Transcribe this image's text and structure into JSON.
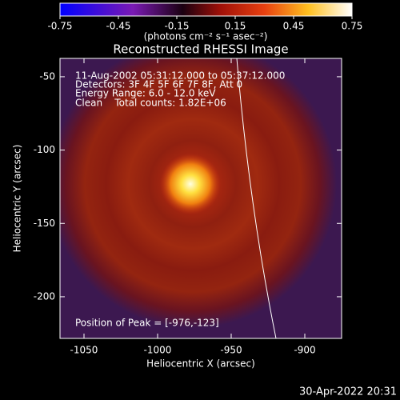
{
  "chart_data": {
    "type": "image",
    "title": "Reconstructed RHESSI Image",
    "xlabel": "Heliocentric X (arcsec)",
    "ylabel": "Heliocentric Y (arcsec)",
    "xlim": [
      -1066.3,
      -875
    ],
    "ylim": [
      -228.4,
      -37.5
    ],
    "xticks": [
      -1050,
      -1000,
      -950,
      -900
    ],
    "yticks": [
      -50,
      -100,
      -150,
      -200
    ],
    "annotations": [
      "11-Aug-2002 05:31:12.000 to 05:37:12.000",
      "Detectors: 3F 4F 5F 6F 7F 8F, Att 0",
      "Energy Range: 6.0 - 12.0 keV",
      "Clean    Total counts: 1.82E+06"
    ],
    "peak_label": "Position of Peak = [-976,-123]",
    "colorbar": {
      "label": "(photons cm⁻² s⁻¹ asec⁻²)",
      "lim": [
        -0.75,
        0.75
      ],
      "ticks": [
        -0.75,
        -0.45,
        -0.15,
        0.15,
        0.45,
        0.75
      ]
    },
    "footer": "30-Apr-2022 20:31"
  }
}
